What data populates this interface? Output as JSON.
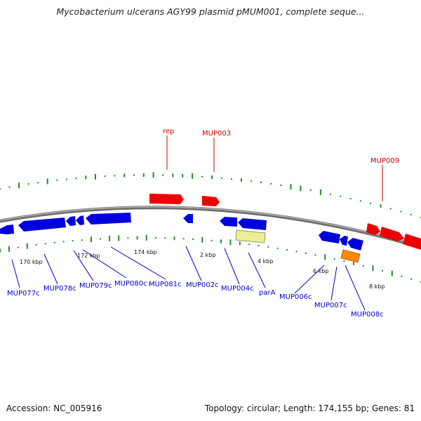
{
  "title": "Mycobacterium ulcerans AGY99 plasmid pMUM001, complete seque...",
  "footer": {
    "accession": "Accession: NC_005916",
    "summary": "Topology: circular; Length: 174,155 bp; Genes: 81"
  },
  "colors": {
    "backbone": "#888888",
    "forward_gene": "#ee0000",
    "reverse_gene": "#0000dd",
    "parA": "#eeee99",
    "MUP008c": "#ff8800",
    "gc_ticks": "#228B22"
  },
  "tick_labels": [
    {
      "text": "170 kbp"
    },
    {
      "text": "172 kbp"
    },
    {
      "text": "174 kbp"
    },
    {
      "text": "2 kbp"
    },
    {
      "text": "4 kbp"
    },
    {
      "text": "6 kbp"
    },
    {
      "text": "8 kbp"
    }
  ],
  "gene_labels_top": [
    {
      "text": "rep"
    },
    {
      "text": "MUP003"
    },
    {
      "text": "MUP009"
    }
  ],
  "gene_labels_bottom": [
    {
      "text": "MUP077c"
    },
    {
      "text": "MUP078c"
    },
    {
      "text": "MUP079c"
    },
    {
      "text": "MUP080c"
    },
    {
      "text": "MUP081c"
    },
    {
      "text": "MUP002c"
    },
    {
      "text": "MUP004c"
    },
    {
      "text": "parA"
    },
    {
      "text": "MUP006c"
    },
    {
      "text": "MUP007c"
    },
    {
      "text": "MUP008c"
    }
  ]
}
